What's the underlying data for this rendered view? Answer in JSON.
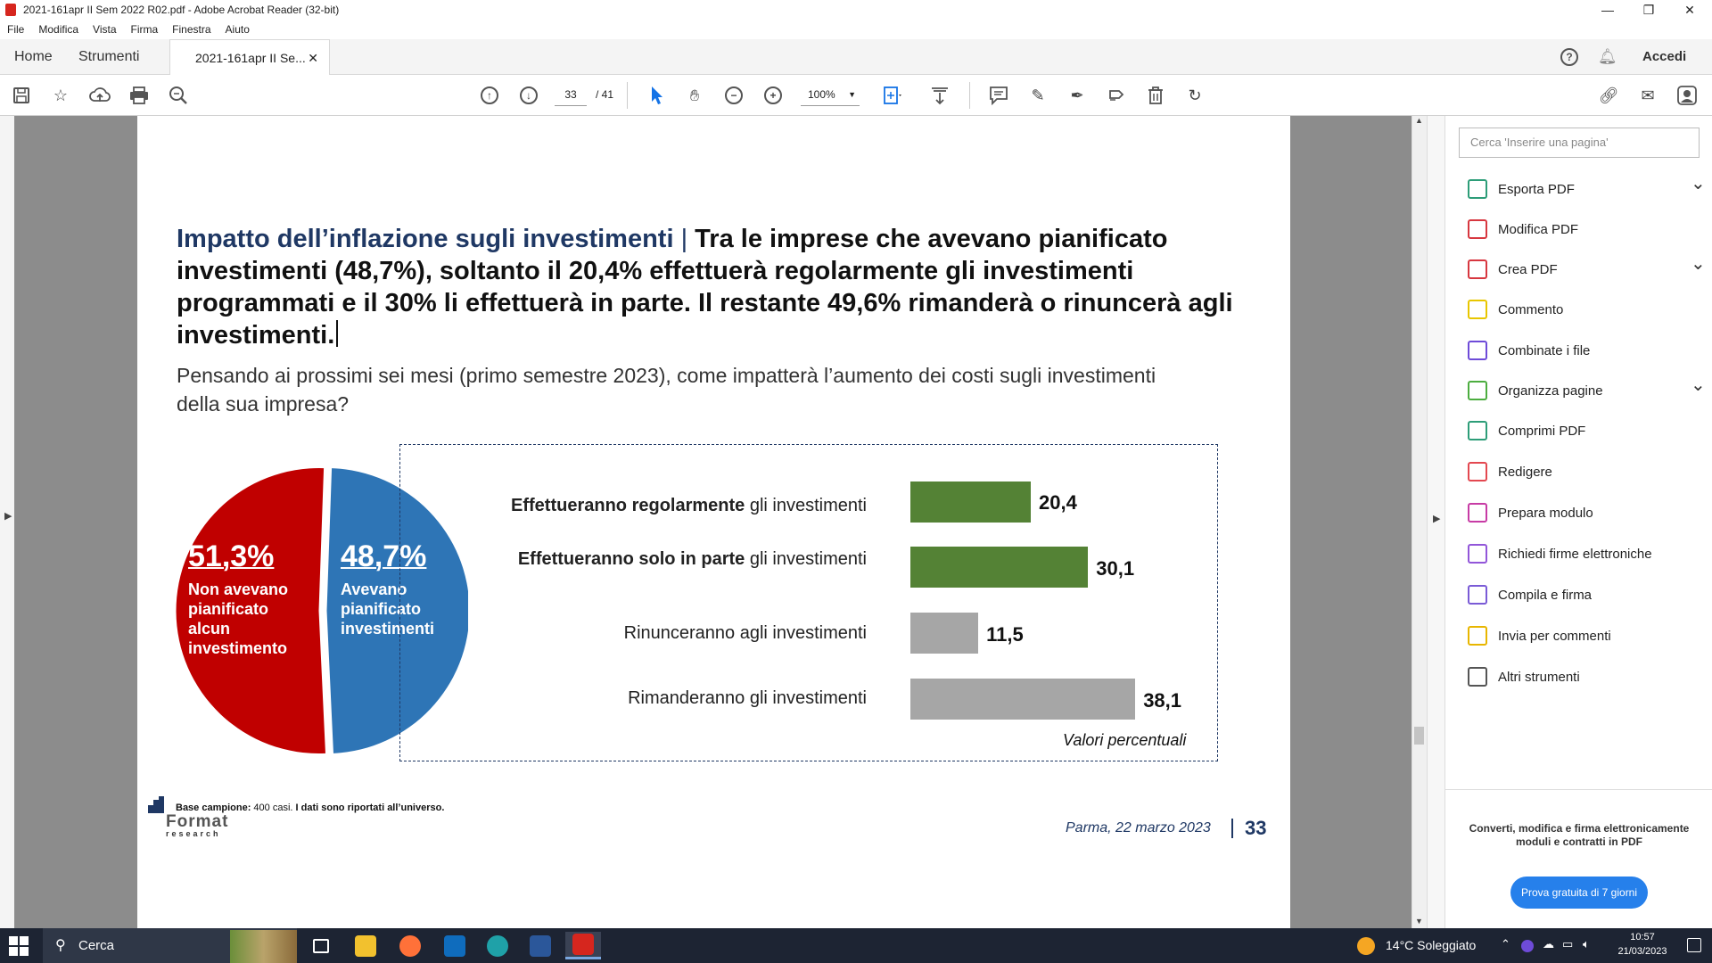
{
  "window": {
    "title": "2021-161apr II Sem 2022 R02.pdf - Adobe Acrobat Reader (32-bit)"
  },
  "menu": [
    "File",
    "Modifica",
    "Vista",
    "Firma",
    "Finestra",
    "Aiuto"
  ],
  "tabs": {
    "home": "Home",
    "tools": "Strumenti",
    "document": "2021-161apr II Se...",
    "signin": "Accedi"
  },
  "toolbar": {
    "page_current": "33",
    "page_total": "/ 41",
    "zoom": "100%"
  },
  "page": {
    "heading_blue": "Impatto dell’inflazione sugli investimenti",
    "heading_sep": " | ",
    "heading_bold": "Tra le imprese che avevano pianificato investimenti (48,7%), soltanto il 20,4% effettuerà regolarmente gli investimenti programmati e il 30% li effettuerà in parte. Il restante 49,6% rimanderà o rinuncerà agli investimenti.",
    "question": "Pensando ai prossimi sei mesi (primo semestre 2023), come impatterà l’aumento dei costi sugli investimenti della sua impresa?",
    "pie": {
      "left_value": "51,3%",
      "left_label": [
        "Non avevano",
        "pianificato",
        "alcun",
        "investimento"
      ],
      "right_value": "48,7%",
      "right_label": [
        "Avevano",
        "pianificato",
        "investimenti"
      ],
      "colors": {
        "red": "#c00000",
        "blue": "#2e75b6"
      }
    },
    "bars": [
      {
        "bold": "Effettueranno regolarmente",
        "rest": " gli investimenti",
        "value": 20.4,
        "label": "20,4",
        "color": "#548235"
      },
      {
        "bold": "Effettueranno solo in parte",
        "rest": " gli investimenti",
        "value": 30.1,
        "label": "30,1",
        "color": "#548235"
      },
      {
        "bold": "",
        "rest": "Rinunceranno agli investimenti",
        "value": 11.5,
        "label": "11,5",
        "color": "#a6a6a6"
      },
      {
        "bold": "",
        "rest": "Rimanderanno gli investimenti",
        "value": 38.1,
        "label": "38,1",
        "color": "#a6a6a6"
      }
    ],
    "values_note": "Valori percentuali",
    "base_bold1": "Base campione:",
    "base_text": " 400 casi.",
    "base_bold2": " I dati sono riportati all’universo.",
    "logo_line1": "Format",
    "logo_line2": "research",
    "footer_date": "Parma,  22 marzo 2023",
    "footer_page": "33"
  },
  "chart_data": [
    {
      "type": "pie",
      "categories": [
        "Non avevano pianificato alcun investimento",
        "Avevano pianificato investimenti"
      ],
      "values": [
        51.3,
        48.7
      ]
    },
    {
      "type": "bar",
      "categories": [
        "Effettueranno regolarmente gli investimenti",
        "Effettueranno solo in parte gli investimenti",
        "Rinunceranno agli investimenti",
        "Rimanderanno gli investimenti"
      ],
      "values": [
        20.4,
        30.1,
        11.5,
        38.1
      ],
      "ylabel": "Valori percentuali"
    }
  ],
  "right_pane": {
    "search_placeholder": "Cerca 'Inserire una pagina'",
    "tools": [
      {
        "label": "Esporta PDF",
        "color": "#2d9d78",
        "chevron": true
      },
      {
        "label": "Modifica PDF",
        "color": "#d7373f",
        "chevron": false
      },
      {
        "label": "Crea PDF",
        "color": "#d7373f",
        "chevron": true
      },
      {
        "label": "Commento",
        "color": "#e8c600",
        "chevron": false
      },
      {
        "label": "Combinate i file",
        "color": "#6e4bd8",
        "chevron": false
      },
      {
        "label": "Organizza pagine",
        "color": "#4cad3f",
        "chevron": true
      },
      {
        "label": "Comprimi PDF",
        "color": "#2d9d78",
        "chevron": false
      },
      {
        "label": "Redigere",
        "color": "#e34850",
        "chevron": false
      },
      {
        "label": "Prepara modulo",
        "color": "#c73ba5",
        "chevron": false
      },
      {
        "label": "Richiedi firme elettroniche",
        "color": "#9256d9",
        "chevron": false
      },
      {
        "label": "Compila e firma",
        "color": "#7a5bd6",
        "chevron": false
      },
      {
        "label": "Invia per commenti",
        "color": "#e8b600",
        "chevron": false
      },
      {
        "label": "Altri strumenti",
        "color": "#555555",
        "chevron": false
      }
    ],
    "promo_text": "Converti, modifica e firma elettronicamente moduli e contratti in PDF",
    "promo_button": "Prova gratuita di 7 giorni"
  },
  "taskbar": {
    "search": "Cerca",
    "weather": "14°C  Soleggiato",
    "time": "10:57",
    "date": "21/03/2023"
  }
}
